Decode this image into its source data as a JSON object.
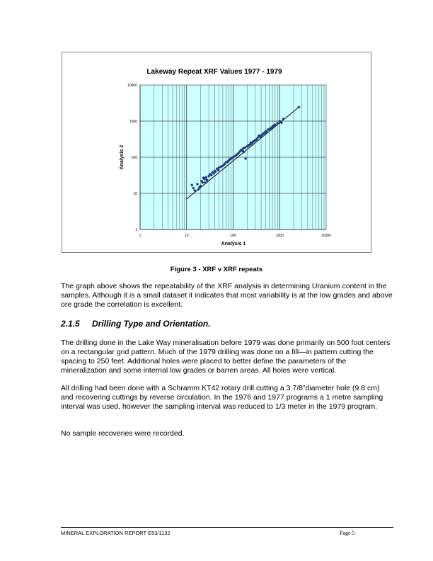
{
  "chart_data": {
    "type": "scatter",
    "title": "Lakeway Repeat XRF Values 1977 - 1979",
    "xlabel": "Analysis 1",
    "ylabel": "Analysis 2",
    "xscale": "log",
    "yscale": "log",
    "xlim": [
      1,
      10000
    ],
    "ylim": [
      1,
      10000
    ],
    "xticks": [
      "1",
      "10",
      "100",
      "1000",
      "10000"
    ],
    "yticks": [
      "1",
      "10",
      "100",
      "1000",
      "10000"
    ],
    "grid": true,
    "plot_background": "#ccffff",
    "point_color": "#1f3a7a",
    "line_color": "#000000",
    "trendline": {
      "x": [
        10,
        2600
      ],
      "y": [
        7,
        2450
      ]
    },
    "points": [
      [
        13,
        17
      ],
      [
        14,
        14
      ],
      [
        15,
        12
      ],
      [
        17,
        18
      ],
      [
        18,
        13
      ],
      [
        19,
        15
      ],
      [
        20,
        16
      ],
      [
        21,
        22
      ],
      [
        22,
        20
      ],
      [
        23,
        27
      ],
      [
        24,
        25
      ],
      [
        25,
        20
      ],
      [
        26,
        28
      ],
      [
        27,
        24
      ],
      [
        28,
        22
      ],
      [
        30,
        30
      ],
      [
        32,
        34
      ],
      [
        34,
        32
      ],
      [
        36,
        38
      ],
      [
        38,
        36
      ],
      [
        40,
        42
      ],
      [
        42,
        40
      ],
      [
        45,
        48
      ],
      [
        48,
        44
      ],
      [
        50,
        52
      ],
      [
        55,
        55
      ],
      [
        60,
        58
      ],
      [
        65,
        64
      ],
      [
        70,
        72
      ],
      [
        75,
        74
      ],
      [
        80,
        80
      ],
      [
        85,
        88
      ],
      [
        90,
        92
      ],
      [
        95,
        95
      ],
      [
        100,
        100
      ],
      [
        110,
        108
      ],
      [
        120,
        118
      ],
      [
        130,
        130
      ],
      [
        140,
        145
      ],
      [
        150,
        160
      ],
      [
        160,
        150
      ],
      [
        165,
        175
      ],
      [
        170,
        140
      ],
      [
        180,
        185
      ],
      [
        185,
        92
      ],
      [
        200,
        200
      ],
      [
        210,
        210
      ],
      [
        220,
        215
      ],
      [
        230,
        225
      ],
      [
        240,
        250
      ],
      [
        250,
        240
      ],
      [
        260,
        260
      ],
      [
        270,
        270
      ],
      [
        290,
        290
      ],
      [
        300,
        300
      ],
      [
        320,
        310
      ],
      [
        340,
        350
      ],
      [
        360,
        400
      ],
      [
        380,
        370
      ],
      [
        400,
        390
      ],
      [
        420,
        420
      ],
      [
        450,
        460
      ],
      [
        480,
        470
      ],
      [
        500,
        520
      ],
      [
        530,
        500
      ],
      [
        560,
        580
      ],
      [
        600,
        600
      ],
      [
        650,
        640
      ],
      [
        700,
        700
      ],
      [
        750,
        760
      ],
      [
        800,
        790
      ],
      [
        900,
        880
      ],
      [
        1000,
        1000
      ],
      [
        1100,
        900
      ],
      [
        1200,
        1150
      ],
      [
        2600,
        2450
      ]
    ]
  },
  "caption": "Figure 3 - XRF v XRF repeats",
  "paragraphs": {
    "p1": "The graph above shows the repeatability of the XRF analysis in determining Uranium content in the samples. Although it is a small dataset it indicates that most variability is at the low grades and above ore grade the correlation is excellent.",
    "p2": "The drilling done in the Lake Way mineralisation before 1979 was done primarily on 500 foot centers on a rectangular grid pattern. Much of the 1979 drilling was done on a fill—in pattern cutting the spacing to 250 feet. Additional holes were placed to better define the parameters of the mineralization and some internal low grades or barren areas. All holes were vertical.",
    "p3": "All drilling had been done with a Schramm KT42 rotary drill cutting a 3 7/8”diameter hole (9.8 cm) and recovering cuttings by reverse circulation. In the 1976 and 1977 programs a 1 metre sampling interval was used, however the sampling interval was reduced to 1/3 meter in the 1979 program.",
    "p4": "No sample recoveries were recorded."
  },
  "section": {
    "number": "2.1.5",
    "title": "Drilling Type and Orientation."
  },
  "footer": {
    "left": "MINERAL EXPLORATION REPORT E53/1132",
    "right": "Page 5"
  }
}
